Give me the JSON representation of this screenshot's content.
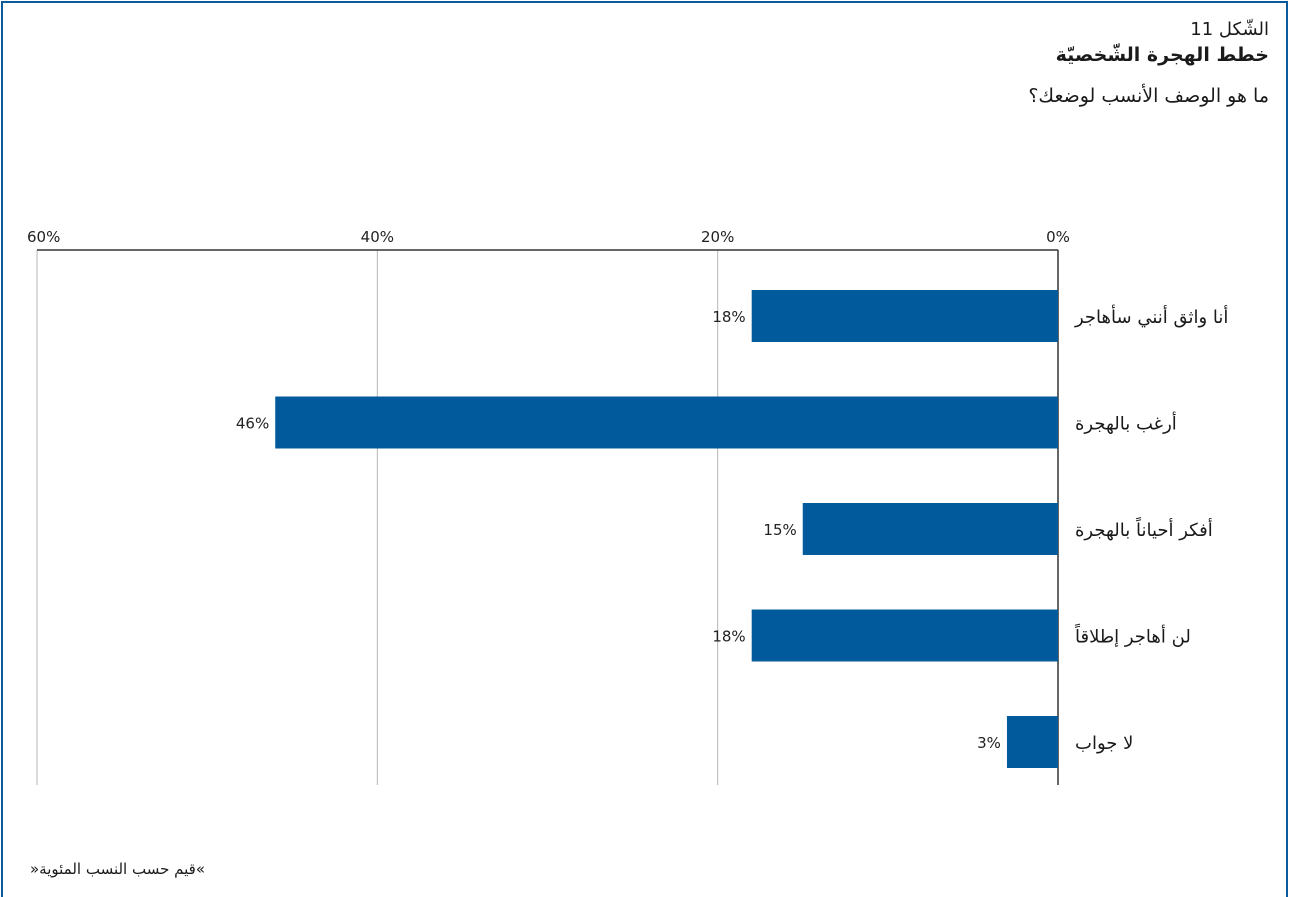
{
  "figure": {
    "label": "الشّكل 11",
    "title": "خطط الهجرة الشّخصيّة",
    "question": "ما هو الوصف الأنسب لوضعك؟"
  },
  "note": "»قيم حسب النسب المئوية«",
  "colors": {
    "bar": "#005a9c",
    "grid": "#b5b5b5",
    "axis": "#333333",
    "frame": "#0a5a9c"
  },
  "chart_data": {
    "type": "bar",
    "orientation": "horizontal",
    "direction": "rtl",
    "categories": [
      "أنا واثق أنني سأهاجر",
      "أرغب بالهجرة",
      "أفكر أحياناً بالهجرة",
      "لن أهاجر إطلاقاً",
      "لا جواب"
    ],
    "values": [
      18,
      46,
      15,
      18,
      3
    ],
    "value_labels": [
      "18%",
      "46%",
      "15%",
      "18%",
      "3%"
    ],
    "xlim": [
      0,
      60
    ],
    "ticks": [
      0,
      20,
      40,
      60
    ],
    "tick_labels": [
      "0%",
      "20%",
      "40%",
      "60%"
    ],
    "grid": true,
    "axis_position": "top"
  }
}
